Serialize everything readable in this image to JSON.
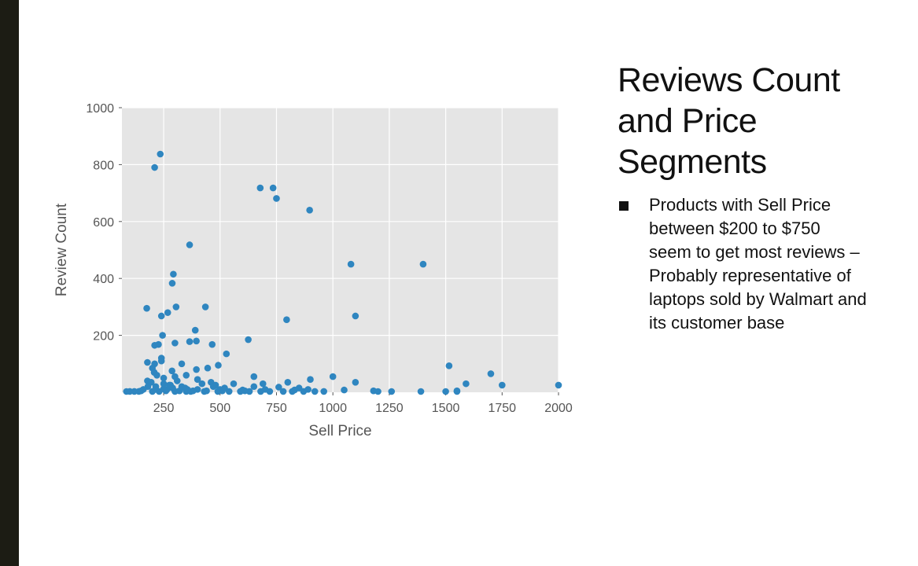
{
  "slide": {
    "title_lines": [
      "Reviews Count",
      "and Price",
      "Segments"
    ],
    "bullets": [
      {
        "lines": [
          "Products with Sell Price",
          "between $200 to $750",
          "seem to get most reviews –",
          "Probably representative of",
          "laptops sold by Walmart and",
          "its customer base"
        ]
      }
    ]
  },
  "colors": {
    "panel_background": "#e5e5e5",
    "grid": "#ffffff",
    "point": "#2f86c0",
    "tick_text": "#555555",
    "axis_label_text": "#555555",
    "slide_accent_bar": "#1c1c14"
  },
  "chart_data": {
    "type": "scatter",
    "style": "ggplot",
    "xlabel": "Sell Price",
    "ylabel": "Review Count",
    "xlim": [
      65,
      2000
    ],
    "ylim": [
      0,
      1000
    ],
    "xticks": [
      250,
      500,
      750,
      1000,
      1250,
      1500,
      1750,
      2000
    ],
    "yticks": [
      200,
      400,
      600,
      800,
      1000
    ],
    "xtick_labels": [
      "250",
      "500",
      "750",
      "1000",
      "1250",
      "1500",
      "1750",
      "2000"
    ],
    "ytick_labels": [
      "200",
      "400",
      "600",
      "800",
      "1000"
    ],
    "grid": true,
    "series": [
      {
        "x": [
          235,
          210,
          678,
          735,
          750,
          897,
          365,
          293,
          1080,
          1400,
          175,
          288,
          305,
          240,
          435,
          268,
          1100,
          795,
          390,
          245,
          395,
          365,
          300,
          465,
          227,
          210,
          528,
          625,
          240,
          240,
          178,
          210,
          330,
          492,
          1515,
          445,
          395,
          200,
          287,
          208,
          1700,
          1000,
          1590,
          900,
          1100,
          220,
          250,
          300,
          350,
          400,
          460,
          650,
          800,
          178,
          195,
          250,
          310,
          420,
          480,
          560,
          690,
          180,
          280,
          330,
          470,
          520,
          650,
          760,
          850,
          160,
          215,
          265,
          355,
          400,
          500,
          600,
          700,
          830,
          890,
          1050,
          1180,
          1550,
          1750,
          2000,
          85,
          100,
          120,
          140,
          200,
          230,
          300,
          350,
          370,
          430,
          490,
          540,
          590,
          630,
          680,
          720,
          780,
          820,
          870,
          920,
          960,
          1200,
          1260,
          1390,
          1500,
          1550,
          150,
          260,
          320,
          380,
          440,
          510,
          610,
          250,
          290,
          345,
          215,
          275
        ],
        "y": [
          837,
          790,
          718,
          718,
          681,
          640,
          518,
          415,
          450,
          450,
          295,
          383,
          300,
          268,
          300,
          280,
          268,
          255,
          218,
          200,
          180,
          178,
          173,
          168,
          168,
          165,
          135,
          185,
          120,
          110,
          105,
          100,
          100,
          95,
          93,
          85,
          80,
          85,
          75,
          70,
          65,
          55,
          30,
          45,
          35,
          60,
          50,
          55,
          60,
          45,
          35,
          55,
          35,
          40,
          35,
          30,
          40,
          30,
          25,
          30,
          30,
          20,
          25,
          20,
          20,
          15,
          20,
          18,
          15,
          10,
          10,
          10,
          10,
          10,
          10,
          8,
          10,
          8,
          10,
          8,
          5,
          5,
          25,
          25,
          2,
          3,
          3,
          3,
          3,
          3,
          3,
          3,
          3,
          3,
          3,
          3,
          3,
          3,
          3,
          3,
          3,
          3,
          3,
          3,
          3,
          2,
          2,
          2,
          2,
          2,
          5,
          5,
          5,
          5,
          5,
          5,
          5,
          12,
          15,
          15,
          20,
          25
        ]
      }
    ]
  }
}
